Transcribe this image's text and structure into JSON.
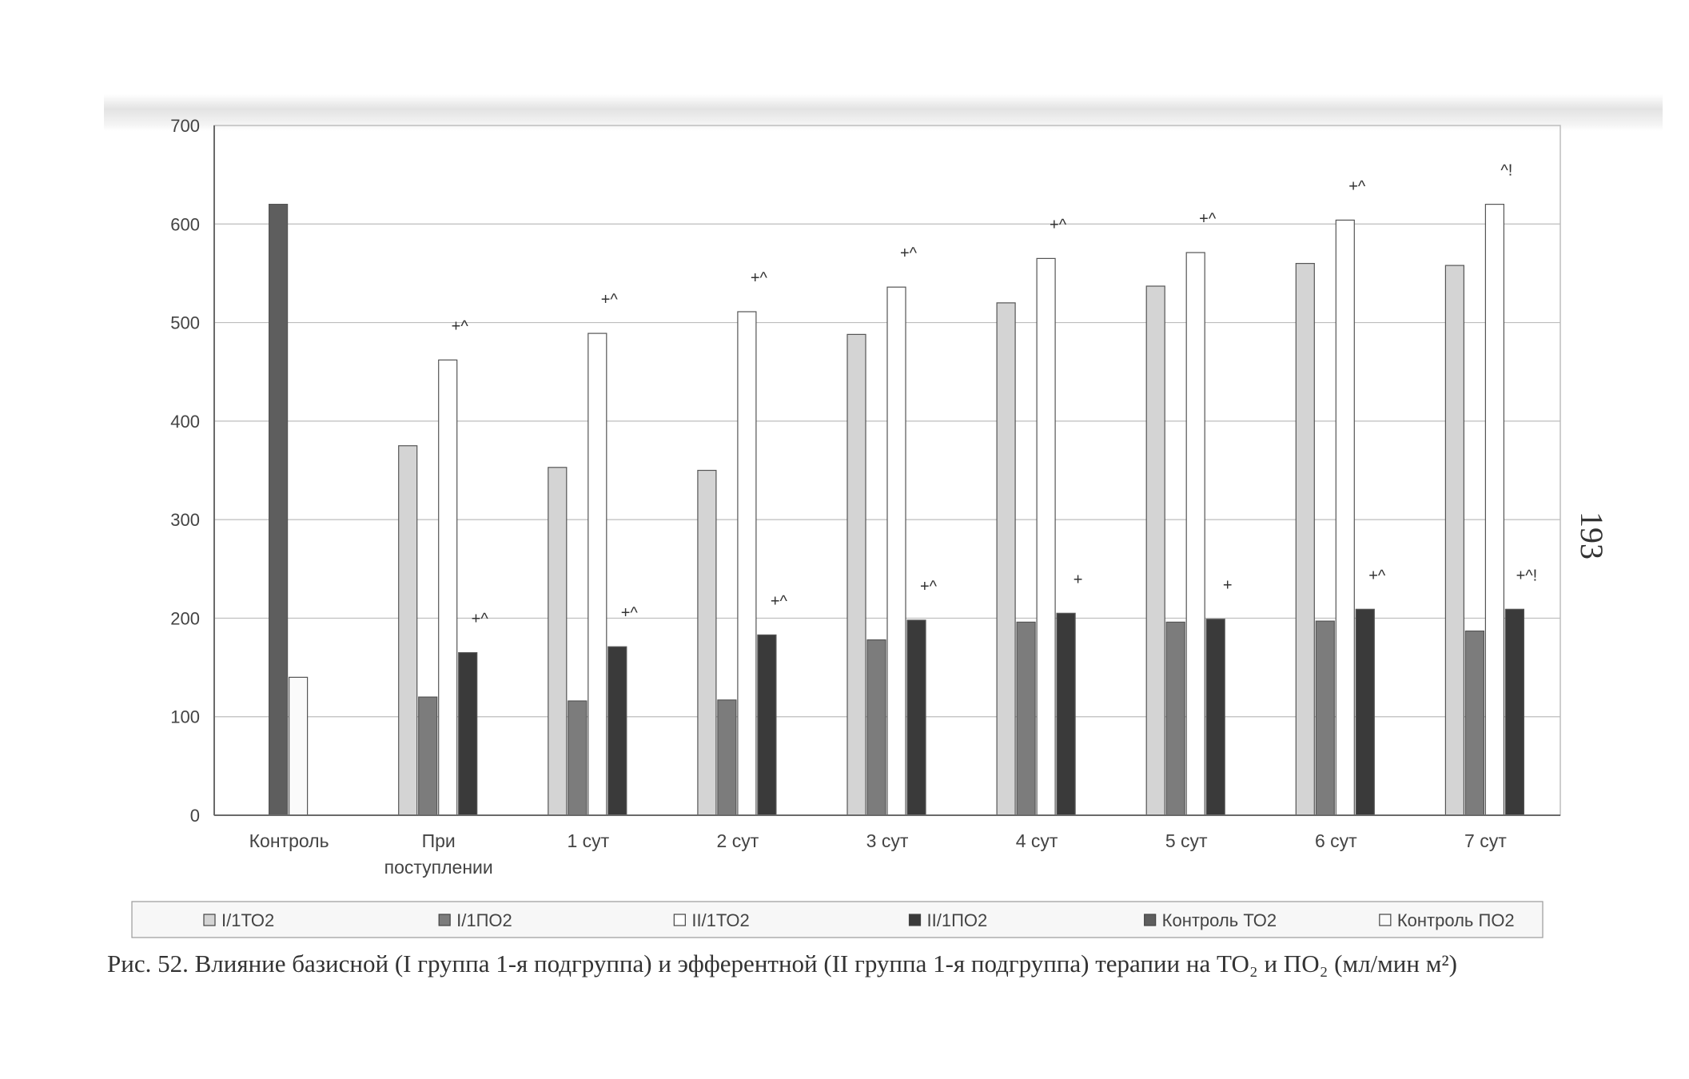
{
  "page_number": "193",
  "caption": "Рис. 52. Влияние базисной (I группа 1-я подгруппа) и эфферентной (II группа 1-я подгруппа) терапии на ТО₂ и ПО₂ (мл/мин м²)",
  "colors": {
    "I_1TO2": "#d4d4d4",
    "I_1PO2": "#7c7c7c",
    "II_1TO2": "#ffffff",
    "II_1PO2": "#3a3a3a",
    "Kontrol_TO2": "#5e5e5e",
    "Kontrol_PO2": "#fafafa",
    "grid": "#bdbdbd",
    "axis": "#6a6a6a"
  },
  "chart_data": {
    "type": "bar",
    "title": "",
    "xlabel": "",
    "ylabel": "",
    "ylim": [
      0,
      700
    ],
    "yticks": [
      0,
      100,
      200,
      300,
      400,
      500,
      600,
      700
    ],
    "grid": true,
    "legend_placement": "bottom",
    "categories": [
      "Контроль",
      "При поступлении",
      "1 сут",
      "2 сут",
      "3 сут",
      "4 сут",
      "5 сут",
      "6 сут",
      "7 сут"
    ],
    "category_labels": [
      [
        "Контроль"
      ],
      [
        "При",
        "поступлении"
      ],
      [
        "1 сут"
      ],
      [
        "2 сут"
      ],
      [
        "3 сут"
      ],
      [
        "4 сут"
      ],
      [
        "5 сут"
      ],
      [
        "6 сут"
      ],
      [
        "7 сут"
      ]
    ],
    "series": [
      {
        "name": "I/1ТО2",
        "color_key": "I_1TO2",
        "values": [
          null,
          375,
          353,
          350,
          488,
          520,
          537,
          560,
          558
        ]
      },
      {
        "name": "I/1ПО2",
        "color_key": "I_1PO2",
        "values": [
          null,
          120,
          116,
          117,
          178,
          196,
          196,
          197,
          187
        ]
      },
      {
        "name": "II/1ТО2",
        "color_key": "II_1TO2",
        "values": [
          null,
          462,
          489,
          511,
          536,
          565,
          571,
          604,
          620
        ]
      },
      {
        "name": "II/1ПО2",
        "color_key": "II_1PO2",
        "values": [
          null,
          165,
          171,
          183,
          198,
          205,
          199,
          209,
          209
        ]
      },
      {
        "name": "Контроль ТО2",
        "color_key": "Kontrol_TO2",
        "values": [
          620,
          null,
          null,
          null,
          null,
          null,
          null,
          null,
          null
        ]
      },
      {
        "name": "Контроль ПО2",
        "color_key": "Kontrol_PO2",
        "values": [
          140,
          null,
          null,
          null,
          null,
          null,
          null,
          null,
          null
        ]
      }
    ],
    "annotations": [
      {
        "category": "При поступлении",
        "series": "II/1ТО2",
        "text": "+^"
      },
      {
        "category": "При поступлении",
        "series": "II/1ПО2",
        "text": "+^"
      },
      {
        "category": "1 сут",
        "series": "II/1ТО2",
        "text": "+^"
      },
      {
        "category": "1 сут",
        "series": "II/1ПО2",
        "text": "+^"
      },
      {
        "category": "2 сут",
        "series": "II/1ТО2",
        "text": "+^"
      },
      {
        "category": "2 сут",
        "series": "II/1ПО2",
        "text": "+^"
      },
      {
        "category": "3 сут",
        "series": "II/1ТО2",
        "text": "+^"
      },
      {
        "category": "3 сут",
        "series": "II/1ПО2",
        "text": "+^"
      },
      {
        "category": "4 сут",
        "series": "II/1ТО2",
        "text": "+^"
      },
      {
        "category": "4 сут",
        "series": "II/1ПО2",
        "text": "+"
      },
      {
        "category": "5 сут",
        "series": "II/1ТО2",
        "text": "+^"
      },
      {
        "category": "5 сут",
        "series": "II/1ПО2",
        "text": "+"
      },
      {
        "category": "6 сут",
        "series": "II/1ТО2",
        "text": "+^"
      },
      {
        "category": "6 сут",
        "series": "II/1ПО2",
        "text": "+^"
      },
      {
        "category": "7 сут",
        "series": "II/1ТО2",
        "text": "^!"
      },
      {
        "category": "7 сут",
        "series": "II/1ПО2",
        "text": "+^!"
      }
    ]
  }
}
